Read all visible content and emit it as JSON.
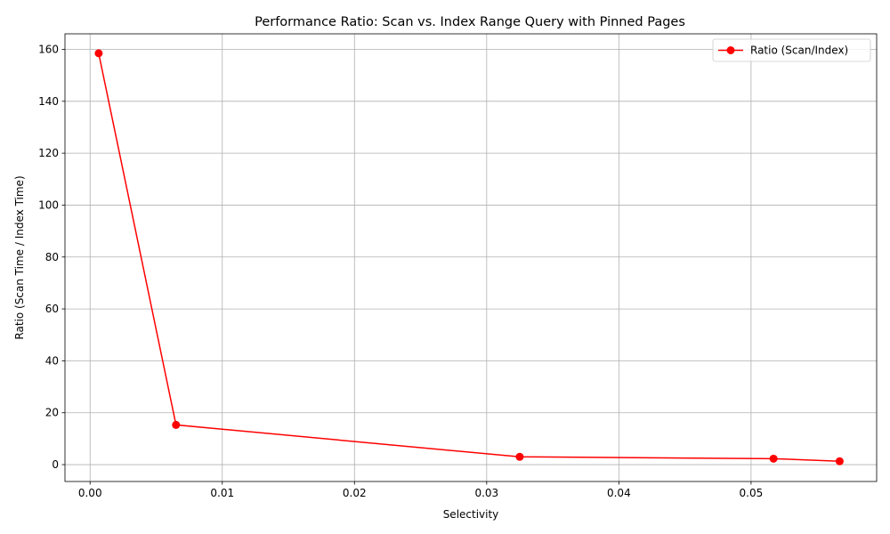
{
  "chart_data": {
    "type": "line",
    "title": "Performance Ratio: Scan vs. Index Range Query with Pinned Pages",
    "xlabel": "Selectivity",
    "ylabel": "Ratio (Scan Time / Index Time)",
    "xlim": [
      -0.0019,
      0.0595
    ],
    "ylim": [
      -6.5,
      166
    ],
    "xticks": [
      0.0,
      0.01,
      0.02,
      0.03,
      0.04,
      0.05
    ],
    "xtick_labels": [
      "0.00",
      "0.01",
      "0.02",
      "0.03",
      "0.04",
      "0.05"
    ],
    "yticks": [
      0,
      20,
      40,
      60,
      80,
      100,
      120,
      140,
      160
    ],
    "ytick_labels": [
      "0",
      "20",
      "40",
      "60",
      "80",
      "100",
      "120",
      "140",
      "160"
    ],
    "grid": true,
    "legend_position": "upper-right",
    "series": [
      {
        "name": "Ratio (Scan/Index)",
        "color": "#ff0000",
        "marker": "circle",
        "x": [
          0.00065,
          0.0065,
          0.0325,
          0.0517,
          0.0567
        ],
        "y": [
          158.5,
          15.3,
          3.0,
          2.3,
          1.3
        ]
      }
    ]
  }
}
